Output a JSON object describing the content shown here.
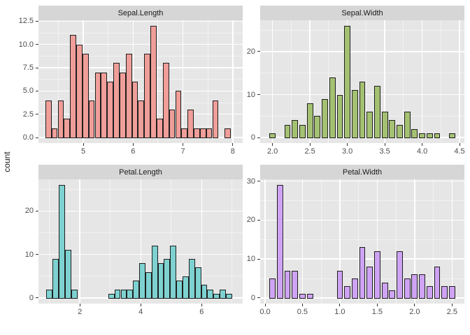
{
  "figure": {
    "ylabel": "count",
    "colors": {
      "background": "#FFFFFF",
      "panel_bg": "#E6E6E6",
      "strip_bg": "#D6D6D6",
      "grid_major": "#FFFFFF",
      "grid_minor": "#F3F3F3",
      "bar_border": "#1F1F1F",
      "tick_mark": "#333333",
      "tick_label": "#4D4D4D",
      "strip_text": "#1A1A1A",
      "axis_title": "#1A1A1A"
    }
  },
  "chart_data": [
    {
      "type": "bar",
      "subtype": "histogram",
      "title": "Sepal.Length",
      "fill": "#F09E99",
      "binwidth": 0.1241,
      "xlim": [
        4.1,
        8.2
      ],
      "ylim": [
        -0.6,
        12.6
      ],
      "x_ticks": [
        {
          "v": 5,
          "t": "5"
        },
        {
          "v": 6,
          "t": "6"
        },
        {
          "v": 7,
          "t": "7"
        },
        {
          "v": 8,
          "t": "8"
        }
      ],
      "y_ticks": [
        {
          "v": 0,
          "t": "0.0"
        },
        {
          "v": 2.5,
          "t": "2.5"
        },
        {
          "v": 5,
          "t": "5.0"
        },
        {
          "v": 7.5,
          "t": "7.5"
        },
        {
          "v": 10,
          "t": "10.0"
        },
        {
          "v": 12.5,
          "t": "12.5"
        }
      ],
      "x_minor": [
        4.5,
        5.5,
        6.5,
        7.5
      ],
      "y_minor": [
        1.25,
        3.75,
        6.25,
        8.75,
        11.25
      ],
      "bars_format": "[bin_center, count]",
      "bars": [
        [
          4.3,
          4
        ],
        [
          4.424,
          1
        ],
        [
          4.548,
          4
        ],
        [
          4.672,
          2
        ],
        [
          4.797,
          11
        ],
        [
          4.921,
          10
        ],
        [
          5.045,
          9
        ],
        [
          5.169,
          4
        ],
        [
          5.293,
          7
        ],
        [
          5.417,
          7
        ],
        [
          5.541,
          6
        ],
        [
          5.666,
          8
        ],
        [
          5.79,
          7
        ],
        [
          5.914,
          9
        ],
        [
          6.038,
          6
        ],
        [
          6.162,
          4
        ],
        [
          6.286,
          9
        ],
        [
          6.41,
          12
        ],
        [
          6.534,
          2
        ],
        [
          6.659,
          8
        ],
        [
          6.783,
          3
        ],
        [
          6.907,
          5
        ],
        [
          7.031,
          1
        ],
        [
          7.155,
          3
        ],
        [
          7.279,
          1
        ],
        [
          7.403,
          1
        ],
        [
          7.528,
          1
        ],
        [
          7.652,
          4
        ],
        [
          7.9,
          1
        ]
      ]
    },
    {
      "type": "bar",
      "subtype": "histogram",
      "title": "Sepal.Width",
      "fill": "#A4C172",
      "binwidth": 0.0828,
      "xlim": [
        1.835,
        4.565
      ],
      "ylim": [
        -1.3,
        27.3
      ],
      "x_ticks": [
        {
          "v": 2.0,
          "t": "2.0"
        },
        {
          "v": 2.5,
          "t": "2.5"
        },
        {
          "v": 3.0,
          "t": "3.0"
        },
        {
          "v": 3.5,
          "t": "3.5"
        },
        {
          "v": 4.0,
          "t": "4.0"
        },
        {
          "v": 4.5,
          "t": "4.5"
        }
      ],
      "y_ticks": [
        {
          "v": 0,
          "t": "0"
        },
        {
          "v": 10,
          "t": "10"
        },
        {
          "v": 20,
          "t": "20"
        }
      ],
      "x_minor": [
        2.25,
        2.75,
        3.25,
        3.75,
        4.25
      ],
      "y_minor": [
        5,
        15,
        25
      ],
      "bars_format": "[bin_center, count]",
      "bars": [
        [
          2.0,
          1
        ],
        [
          2.2,
          3
        ],
        [
          2.3,
          4
        ],
        [
          2.4,
          3
        ],
        [
          2.5,
          8
        ],
        [
          2.6,
          5
        ],
        [
          2.7,
          9
        ],
        [
          2.8,
          14
        ],
        [
          2.9,
          10
        ],
        [
          3.0,
          26
        ],
        [
          3.1,
          11
        ],
        [
          3.2,
          13
        ],
        [
          3.3,
          6
        ],
        [
          3.4,
          12
        ],
        [
          3.5,
          6
        ],
        [
          3.6,
          4
        ],
        [
          3.7,
          3
        ],
        [
          3.8,
          6
        ],
        [
          3.9,
          2
        ],
        [
          4.0,
          1
        ],
        [
          4.1,
          1
        ],
        [
          4.2,
          1
        ],
        [
          4.4,
          1
        ]
      ]
    },
    {
      "type": "bar",
      "subtype": "histogram",
      "title": "Petal.Length",
      "fill": "#7DD2D1",
      "binwidth": 0.2034,
      "xlim": [
        0.64,
        7.35
      ],
      "ylim": [
        -1.3,
        27.3
      ],
      "x_ticks": [
        {
          "v": 2,
          "t": "2"
        },
        {
          "v": 4,
          "t": "4"
        },
        {
          "v": 6,
          "t": "6"
        }
      ],
      "y_ticks": [
        {
          "v": 0,
          "t": "0"
        },
        {
          "v": 10,
          "t": "10"
        },
        {
          "v": 20,
          "t": "20"
        }
      ],
      "x_minor": [
        1,
        3,
        5,
        7
      ],
      "y_minor": [
        5,
        15,
        25
      ],
      "bars_format": "[bin_center, count]",
      "bars": [
        [
          1.0,
          2
        ],
        [
          1.203,
          9
        ],
        [
          1.407,
          26
        ],
        [
          1.61,
          11
        ],
        [
          1.814,
          2
        ],
        [
          3.034,
          1
        ],
        [
          3.238,
          2
        ],
        [
          3.441,
          2
        ],
        [
          3.644,
          2
        ],
        [
          3.848,
          4
        ],
        [
          4.051,
          8
        ],
        [
          4.255,
          6
        ],
        [
          4.458,
          12
        ],
        [
          4.661,
          8
        ],
        [
          4.865,
          9
        ],
        [
          5.068,
          12
        ],
        [
          5.272,
          4
        ],
        [
          5.475,
          5
        ],
        [
          5.678,
          9
        ],
        [
          5.882,
          7
        ],
        [
          6.085,
          3
        ],
        [
          6.288,
          2
        ],
        [
          6.492,
          1
        ],
        [
          6.695,
          2
        ],
        [
          6.9,
          1
        ]
      ]
    },
    {
      "type": "bar",
      "subtype": "histogram",
      "title": "Petal.Width",
      "fill": "#CFA3F4",
      "binwidth": 0.0828,
      "xlim": [
        -0.065,
        2.665
      ],
      "ylim": [
        -1.45,
        30.45
      ],
      "x_ticks": [
        {
          "v": 0.0,
          "t": "0.0"
        },
        {
          "v": 0.5,
          "t": "0.5"
        },
        {
          "v": 1.0,
          "t": "1.0"
        },
        {
          "v": 1.5,
          "t": "1.5"
        },
        {
          "v": 2.0,
          "t": "2.0"
        },
        {
          "v": 2.5,
          "t": "2.5"
        }
      ],
      "y_ticks": [
        {
          "v": 0,
          "t": "0"
        },
        {
          "v": 10,
          "t": "10"
        },
        {
          "v": 20,
          "t": "20"
        },
        {
          "v": 30,
          "t": "30"
        }
      ],
      "x_minor": [
        0.25,
        0.75,
        1.25,
        1.75,
        2.25
      ],
      "y_minor": [
        5,
        15,
        25
      ],
      "bars_format": "[bin_center, count]",
      "bars": [
        [
          0.1,
          5
        ],
        [
          0.2,
          29
        ],
        [
          0.3,
          7
        ],
        [
          0.4,
          7
        ],
        [
          0.5,
          1
        ],
        [
          0.6,
          1
        ],
        [
          1.0,
          7
        ],
        [
          1.1,
          3
        ],
        [
          1.2,
          5
        ],
        [
          1.3,
          13
        ],
        [
          1.4,
          8
        ],
        [
          1.5,
          12
        ],
        [
          1.6,
          4
        ],
        [
          1.7,
          2
        ],
        [
          1.8,
          12
        ],
        [
          1.9,
          5
        ],
        [
          2.0,
          6
        ],
        [
          2.1,
          6
        ],
        [
          2.2,
          3
        ],
        [
          2.3,
          8
        ],
        [
          2.4,
          3
        ],
        [
          2.5,
          3
        ]
      ]
    }
  ]
}
